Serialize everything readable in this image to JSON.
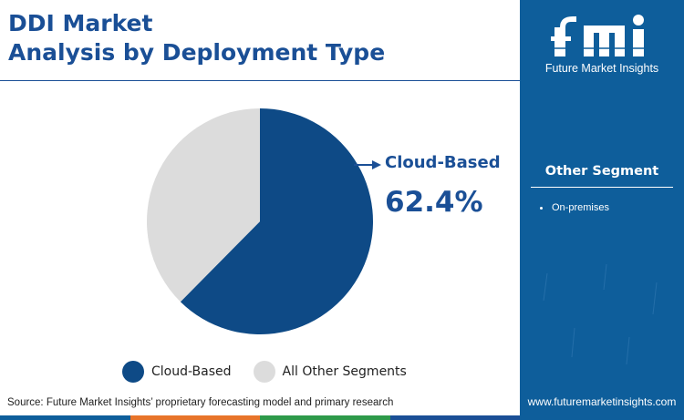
{
  "title": {
    "line1": "DDI Market",
    "line2": "Analysis by Deployment Type"
  },
  "chart_data": {
    "type": "pie",
    "categories": [
      "Cloud-Based",
      "All Other Segments"
    ],
    "values": [
      62.4,
      37.6
    ],
    "colors": [
      "#0e4a86",
      "#dcdcdc"
    ],
    "highlight": {
      "label": "Cloud-Based",
      "value": "62.4%"
    },
    "legend": [
      "Cloud-Based",
      "All Other Segments"
    ],
    "legend_placement": "bottom"
  },
  "source": "Source: Future Market Insights’ proprietary forecasting model and primary research",
  "side_panel": {
    "logo_text": "fmi",
    "logo_caption": "Future Market Insights",
    "heading": "Other Segment",
    "items": [
      "On-premises"
    ],
    "website": "www.futuremarketinsights.com"
  },
  "colors": {
    "accent": "#1a4f96",
    "panel": "#0e5e9b",
    "bottom_bar": [
      "#0e5e9b",
      "#e8742a",
      "#2e9a4a",
      "#1a4f96"
    ]
  }
}
